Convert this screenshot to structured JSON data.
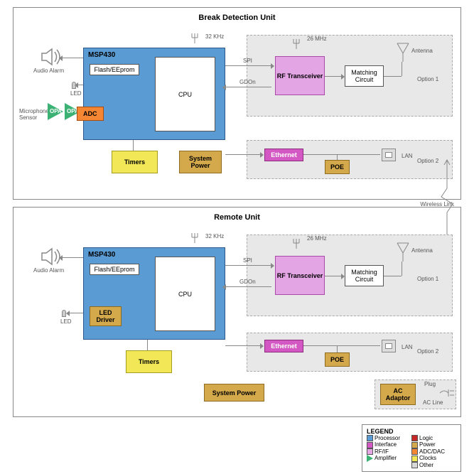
{
  "units": {
    "break": {
      "title": "Break Detection Unit"
    },
    "remote": {
      "title": "Remote Unit"
    }
  },
  "msp430": {
    "name": "MSP430",
    "flash": "Flash/EEprom",
    "cpu": "CPU",
    "led_driver": "LED Driver"
  },
  "blocks": {
    "opa": "OPA",
    "adc": "ADC",
    "timers": "Timers",
    "system_power": "System Power",
    "rf": "RF Transceiver",
    "matching": "Matching Circuit",
    "ethernet": "Ethernet",
    "poe": "POE",
    "ac_adaptor": "AC Adaptor"
  },
  "labels": {
    "audio_alarm": "Audio Alarm",
    "led": "LED",
    "mic": "Microphone/\nSensor",
    "crystal_32k": "32 KHz",
    "crystal_26m": "26 MHz",
    "spi": "SPI",
    "gdon": "GDOn",
    "antenna": "Antenna",
    "option1": "Option 1",
    "option2": "Option 2",
    "lan": "LAN",
    "wireless": "Wireless Link",
    "plug": "Plug",
    "ac_line": "AC Line"
  },
  "legend": {
    "title": "LEGEND",
    "items_left": [
      {
        "name": "Processor",
        "color": "#5a9bd4"
      },
      {
        "name": "Interface",
        "color": "#d458c4"
      },
      {
        "name": "RF/IF",
        "color": "#e4a5e4"
      },
      {
        "name": "Amplifier",
        "shape": "tri"
      }
    ],
    "items_right": [
      {
        "name": "Logic",
        "color": "#c62828"
      },
      {
        "name": "Power",
        "color": "#d4a94c"
      },
      {
        "name": "ADC/DAC",
        "color": "#f58634"
      },
      {
        "name": "Clocks",
        "color": "#f2e857"
      },
      {
        "name": "Other",
        "color": "#d8d8d8"
      }
    ]
  },
  "colors": {
    "processor": "#5a9bd4",
    "interface": "#d458c4",
    "rf": "#e4a5e4",
    "amplifier": "#3bb273",
    "logic": "#c62828",
    "power": "#d4a94c",
    "adc": "#f58634",
    "clocks": "#f2e857",
    "other": "#d8d8d8",
    "option_bg": "#e8e8e8"
  }
}
